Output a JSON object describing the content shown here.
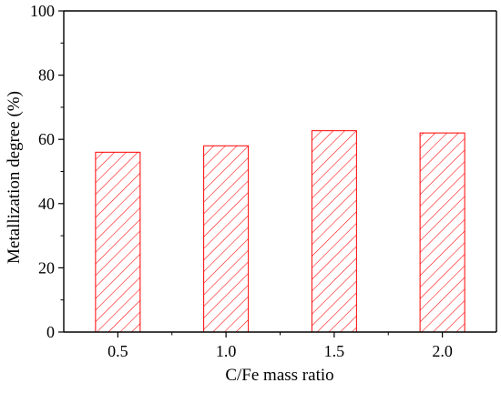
{
  "chart_data": {
    "type": "bar",
    "categories": [
      "0.5",
      "1.0",
      "1.5",
      "2.0"
    ],
    "values": [
      56.0,
      58.0,
      62.7,
      62.0
    ],
    "title": "",
    "xlabel": "C/Fe mass ratio",
    "ylabel": "Metallization degree (%)",
    "ylim": [
      0,
      100
    ],
    "yticks": [
      "0",
      "20",
      "40",
      "60",
      "80",
      "100"
    ],
    "grid": false,
    "legend": "none",
    "bar_fill": "hatched",
    "colors": {
      "bar": "#ff0000",
      "axis": "#000000",
      "background": "#ffffff"
    }
  }
}
